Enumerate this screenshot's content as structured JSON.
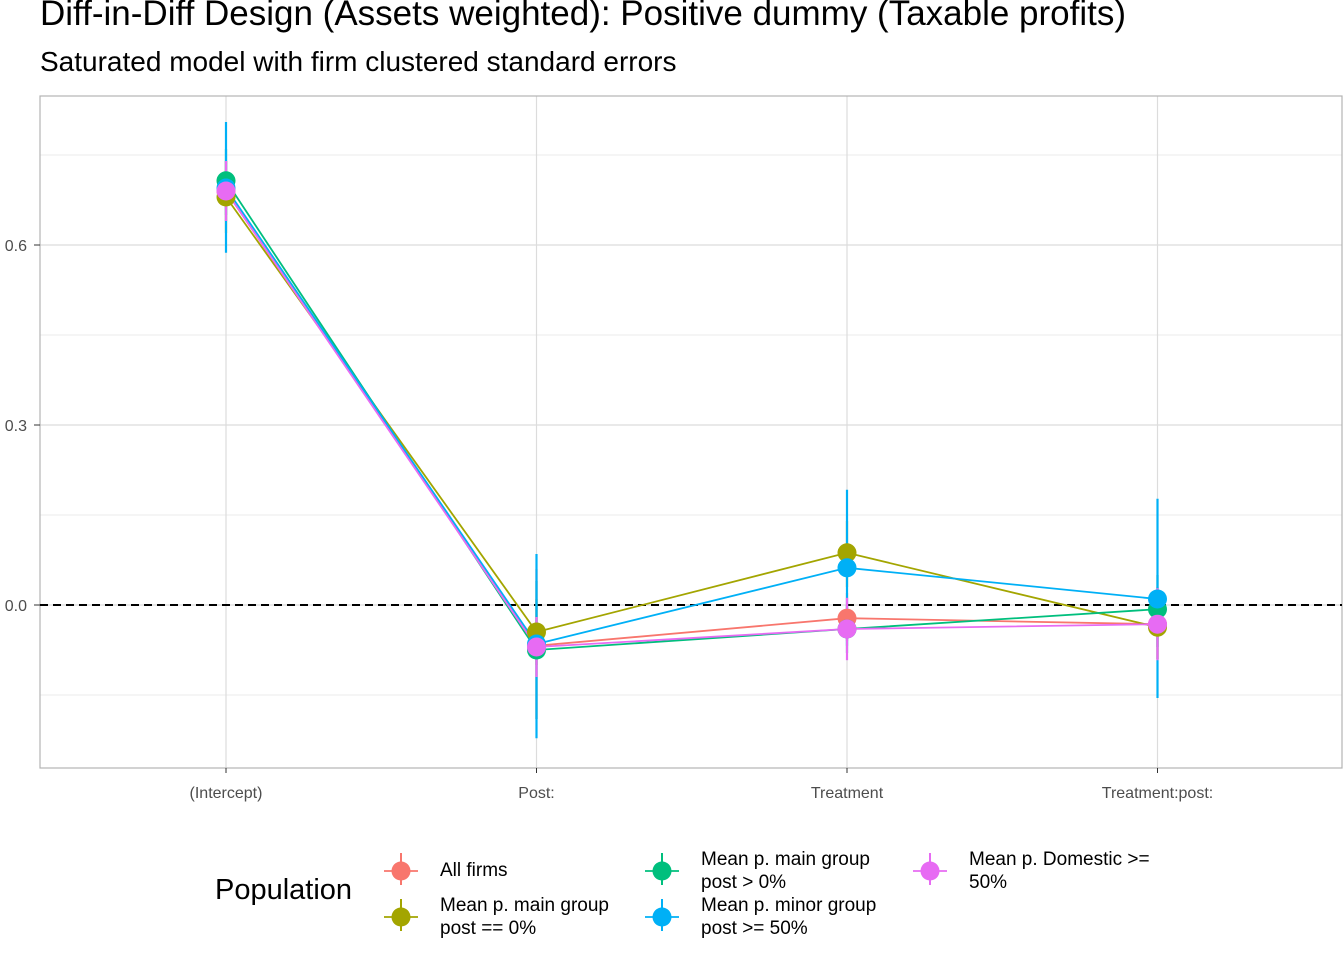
{
  "title": "Diff-in-Diff Design (Assets weighted): Positive dummy (Taxable profits)",
  "subtitle": "Saturated model with firm clustered standard errors",
  "chart_data": {
    "type": "scatter",
    "categories": [
      "(Intercept)",
      "Post:",
      "Treatment",
      "Treatment:post:"
    ],
    "ylim": [
      -0.27,
      0.85
    ],
    "yticks": [
      "0.0",
      "0.3",
      "0.6"
    ],
    "reference_line": 0,
    "grid": true,
    "legend_title": "Population",
    "legend_position": "bottom",
    "series": [
      {
        "name": "All firms",
        "color": "#F8766D",
        "values": [
          0.69,
          -0.068,
          -0.022,
          -0.032
        ],
        "lower": [
          0.64,
          -0.19,
          -0.06,
          -0.09
        ],
        "upper": [
          0.74,
          0.06,
          0.02,
          0.03
        ]
      },
      {
        "name": "Mean p. main group post == 0%",
        "color": "#A3A500",
        "values": [
          0.68,
          -0.045,
          0.087,
          -0.037
        ],
        "lower": [
          0.62,
          -0.1,
          0.03,
          -0.09
        ],
        "upper": [
          0.74,
          0.01,
          0.14,
          0.02
        ]
      },
      {
        "name": "Mean p. main group post > 0%",
        "color": "#00BF7D",
        "values": [
          0.707,
          -0.075,
          -0.04,
          -0.007
        ],
        "lower": [
          0.65,
          -0.19,
          -0.08,
          -0.07
        ],
        "upper": [
          0.76,
          0.04,
          0.0,
          0.05
        ]
      },
      {
        "name": "Mean p. minor group post >= 50%",
        "color": "#00B0F6",
        "values": [
          0.695,
          -0.065,
          0.062,
          0.01
        ],
        "lower": [
          0.587,
          -0.222,
          -0.068,
          -0.155
        ],
        "upper": [
          0.805,
          0.085,
          0.192,
          0.177
        ]
      },
      {
        "name": "Mean p. Domestic >= 50%",
        "color": "#E76BF3",
        "values": [
          0.69,
          -0.07,
          -0.04,
          -0.032
        ],
        "lower": [
          0.64,
          -0.12,
          -0.092,
          -0.092
        ],
        "upper": [
          0.74,
          -0.02,
          0.012,
          0.028
        ]
      }
    ]
  }
}
